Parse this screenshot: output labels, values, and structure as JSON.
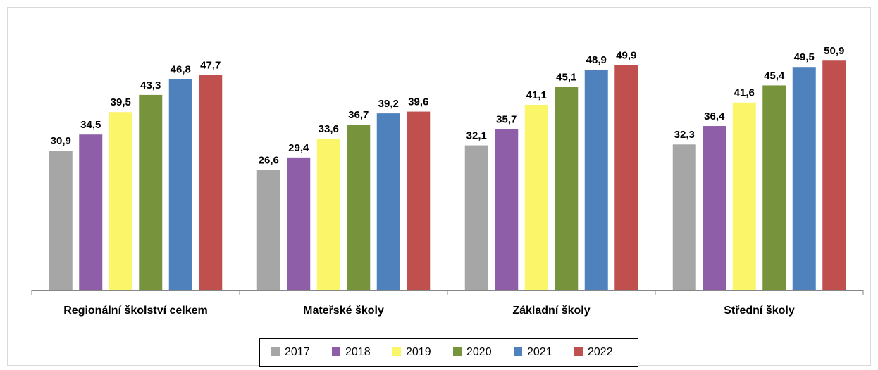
{
  "chart_data": {
    "type": "bar",
    "categories": [
      "Regionální školství celkem",
      "Mateřské školy",
      "Základní školy",
      "Střední školy"
    ],
    "series": [
      {
        "name": "2017",
        "color": "#a6a6a6",
        "values": [
          30.9,
          26.6,
          32.1,
          32.3
        ],
        "value_labels": [
          "30,9",
          "26,6",
          "32,1",
          "32,3"
        ]
      },
      {
        "name": "2018",
        "color": "#8e5ea8",
        "values": [
          34.5,
          29.4,
          35.7,
          36.4
        ],
        "value_labels": [
          "34,5",
          "29,4",
          "35,7",
          "36,4"
        ]
      },
      {
        "name": "2019",
        "color": "#fbf56a",
        "values": [
          39.5,
          33.6,
          41.1,
          41.6
        ],
        "value_labels": [
          "39,5",
          "33,6",
          "41,1",
          "41,6"
        ]
      },
      {
        "name": "2020",
        "color": "#77933c",
        "values": [
          43.3,
          36.7,
          45.1,
          45.4
        ],
        "value_labels": [
          "43,3",
          "36,7",
          "45,1",
          "45,4"
        ]
      },
      {
        "name": "2021",
        "color": "#4f81bd",
        "values": [
          46.8,
          39.2,
          48.9,
          49.5
        ],
        "value_labels": [
          "46,8",
          "39,2",
          "48,9",
          "49,5"
        ]
      },
      {
        "name": "2022",
        "color": "#c0504d",
        "values": [
          47.7,
          39.6,
          49.9,
          50.9
        ],
        "value_labels": [
          "47,7",
          "39,6",
          "49,9",
          "50,9"
        ]
      }
    ],
    "ylim": [
      0,
      55
    ],
    "legend": "bottom"
  }
}
